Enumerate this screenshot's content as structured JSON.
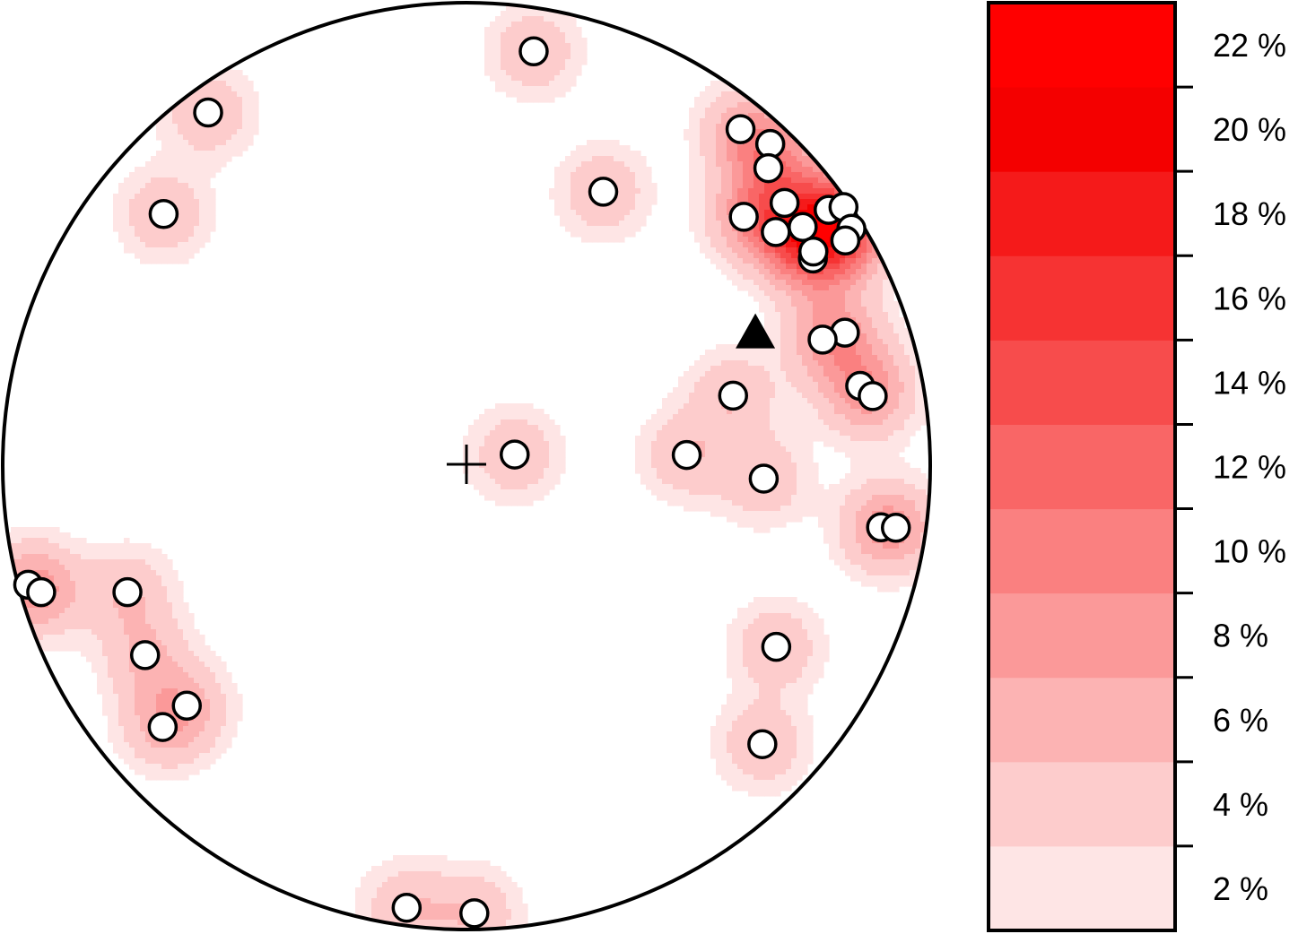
{
  "chart_data": {
    "type": "scatter",
    "projection": "lower-hemisphere stereonet (equal-area)",
    "coordinates": "normalized plot coordinates, x right and y up, unit circle = primitive",
    "primitive_circle": true,
    "center_marker": "cross",
    "mean_marker": {
      "shape": "triangle",
      "color": "#000000",
      "x": 0.623,
      "y": 0.287
    },
    "points": [
      {
        "x": 0.145,
        "y": 0.895
      },
      {
        "x": -0.557,
        "y": 0.763
      },
      {
        "x": -0.653,
        "y": 0.544
      },
      {
        "x": 0.295,
        "y": 0.592
      },
      {
        "x": 0.591,
        "y": 0.727
      },
      {
        "x": 0.655,
        "y": 0.695
      },
      {
        "x": 0.651,
        "y": 0.643
      },
      {
        "x": 0.598,
        "y": 0.538
      },
      {
        "x": 0.686,
        "y": 0.568
      },
      {
        "x": 0.667,
        "y": 0.505
      },
      {
        "x": 0.725,
        "y": 0.516
      },
      {
        "x": 0.781,
        "y": 0.553
      },
      {
        "x": 0.813,
        "y": 0.559
      },
      {
        "x": 0.83,
        "y": 0.512
      },
      {
        "x": 0.817,
        "y": 0.487
      },
      {
        "x": 0.747,
        "y": 0.448
      },
      {
        "x": 0.748,
        "y": 0.463
      },
      {
        "x": 0.816,
        "y": 0.288
      },
      {
        "x": 0.768,
        "y": 0.273
      },
      {
        "x": 0.849,
        "y": 0.173
      },
      {
        "x": 0.876,
        "y": 0.151
      },
      {
        "x": 0.575,
        "y": 0.152
      },
      {
        "x": 0.475,
        "y": 0.024
      },
      {
        "x": 0.641,
        "y": -0.027
      },
      {
        "x": 0.104,
        "y": 0.025
      },
      {
        "x": 0.894,
        "y": -0.132
      },
      {
        "x": 0.926,
        "y": -0.133
      },
      {
        "x": -0.945,
        "y": -0.256
      },
      {
        "x": -0.917,
        "y": -0.272
      },
      {
        "x": -0.731,
        "y": -0.272
      },
      {
        "x": -0.693,
        "y": -0.408
      },
      {
        "x": -0.603,
        "y": -0.517
      },
      {
        "x": -0.655,
        "y": -0.563
      },
      {
        "x": 0.668,
        "y": -0.39
      },
      {
        "x": 0.638,
        "y": -0.6
      },
      {
        "x": -0.129,
        "y": -0.953
      },
      {
        "x": 0.017,
        "y": -0.965
      }
    ],
    "density_contours": {
      "unit": "%",
      "levels": [
        0,
        2,
        4,
        6,
        8,
        10,
        12,
        14,
        16,
        18,
        20,
        22
      ],
      "colors": [
        "#fee5e5",
        "#fdcccc",
        "#fcb3b3",
        "#fb9999",
        "#fa8080",
        "#f96666",
        "#f74c4c",
        "#f63333",
        "#f51a1a",
        "#f40000",
        "#ff0000"
      ],
      "colorbar_labels": [
        "2 %",
        "4 %",
        "6 %",
        "8 %",
        "10 %",
        "12 %",
        "14 %",
        "16 %",
        "18 %",
        "20 %",
        "22 %"
      ]
    }
  }
}
